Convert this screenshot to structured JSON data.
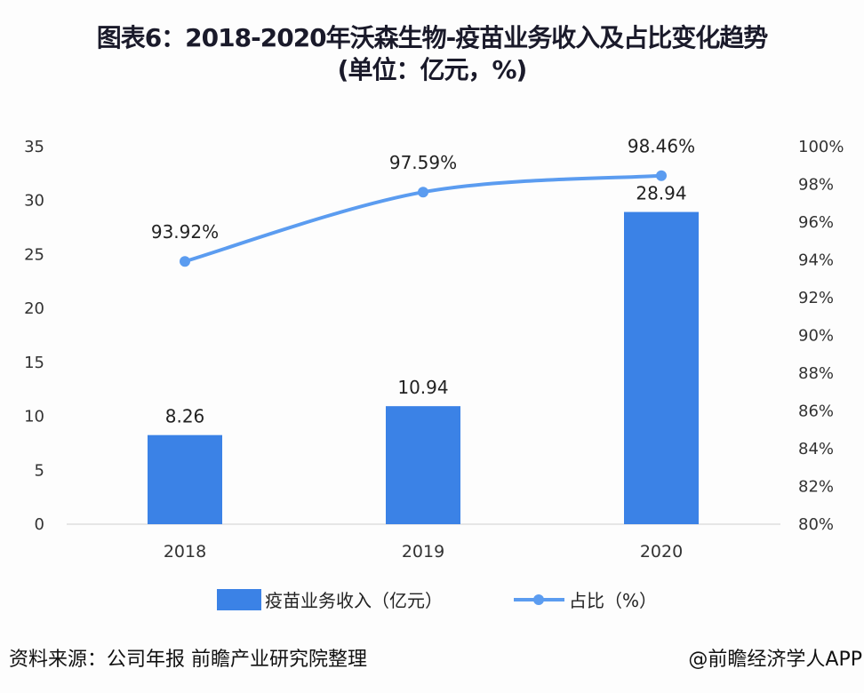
{
  "title": "图表6：2018-2020年沃森生物-疫苗业务收入及占比变化趋势",
  "subtitle": "(单位：亿元，%)",
  "source": "资料来源：公司年报 前瞻产业研究院整理",
  "credit": "@前瞻经济学人APP",
  "watermark": "前瞻产业研究院",
  "chart_data": {
    "type": "bar+line",
    "categories": [
      "2018",
      "2019",
      "2020"
    ],
    "series": [
      {
        "name": "疫苗业务收入（亿元）",
        "type": "bar",
        "axis": "left",
        "values": [
          8.26,
          10.94,
          28.94
        ],
        "labels": [
          "8.26",
          "10.94",
          "28.94"
        ],
        "color": "#3b82e6"
      },
      {
        "name": "占比（%）",
        "type": "line",
        "axis": "right",
        "values": [
          93.92,
          97.59,
          98.46
        ],
        "labels": [
          "93.92%",
          "97.59%",
          "98.46%"
        ],
        "color": "#5b9cf0",
        "smooth": true
      }
    ],
    "left_axis": {
      "ylim": [
        0,
        35
      ],
      "ticks": [
        "0",
        "5",
        "10",
        "15",
        "20",
        "25",
        "30",
        "35"
      ]
    },
    "right_axis": {
      "ylim": [
        80,
        100
      ],
      "ticks": [
        "80%",
        "82%",
        "84%",
        "86%",
        "88%",
        "90%",
        "92%",
        "94%",
        "96%",
        "98%",
        "100%"
      ]
    },
    "grid": false,
    "legend": "bottom"
  }
}
